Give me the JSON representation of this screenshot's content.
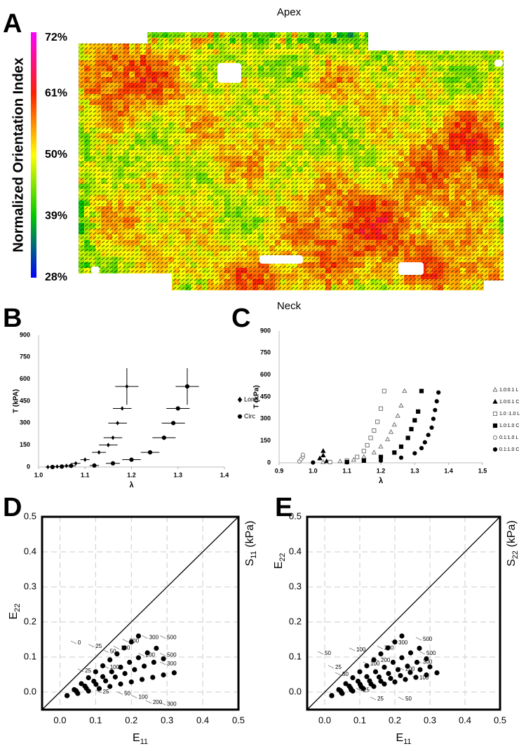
{
  "chart_data": [
    {
      "type": "heatmap",
      "panel": "A",
      "title": "Apex",
      "colorbar_label": "Normalized Orientation Index",
      "colormap": [
        "#0000ff",
        "#00c800",
        "#ffff00",
        "#ff2000",
        "#ff00ff"
      ],
      "clim": [
        28,
        72
      ],
      "cticks": [
        {
          "value": 72,
          "label": "72%"
        },
        {
          "value": 61,
          "label": "61%"
        },
        {
          "value": 50,
          "label": "50%"
        },
        {
          "value": 39,
          "label": "39%"
        },
        {
          "value": 28,
          "label": "28%"
        }
      ]
    },
    {
      "type": "scatter",
      "panel": "B",
      "ylabel": "T (kPA)",
      "xlabel": "λ",
      "xlim": [
        1.0,
        1.4
      ],
      "xticks": [
        {
          "value": 1,
          "label": "1.0"
        },
        {
          "value": 1.1,
          "label": "1.1"
        },
        {
          "value": 1.2,
          "label": "1.2"
        },
        {
          "value": 1.3,
          "label": "1.3"
        },
        {
          "value": 1.4,
          "label": "1.4"
        }
      ],
      "ylim": [
        0,
        900
      ],
      "yticks": [
        0,
        150,
        300,
        450,
        600,
        750,
        900
      ],
      "grid": false,
      "series": [
        {
          "name": "Long",
          "marker": "diamond",
          "filled": true,
          "color": "#000000",
          "x": [
            1.02,
            1.04,
            1.06,
            1.08,
            1.1,
            1.13,
            1.15,
            1.16,
            1.17,
            1.18,
            1.19
          ],
          "values": [
            0,
            3,
            8,
            25,
            50,
            100,
            150,
            200,
            300,
            400,
            550
          ],
          "x_err": [
            0.005,
            0.005,
            0.01,
            0.01,
            0.01,
            0.015,
            0.02,
            0.02,
            0.02,
            0.02,
            0.025
          ],
          "y_err": [
            0,
            0,
            0,
            0,
            0,
            0,
            0,
            0,
            0,
            0,
            125
          ]
        },
        {
          "name": "Circ",
          "marker": "circle",
          "filled": true,
          "color": "#000000",
          "x": [
            1.03,
            1.05,
            1.07,
            1.12,
            1.16,
            1.2,
            1.24,
            1.27,
            1.29,
            1.3,
            1.32
          ],
          "values": [
            0,
            3,
            8,
            10,
            25,
            50,
            100,
            200,
            300,
            400,
            550
          ],
          "x_err": [
            0.005,
            0.005,
            0.01,
            0.01,
            0.015,
            0.02,
            0.02,
            0.025,
            0.025,
            0.025,
            0.025
          ],
          "y_err": [
            0,
            0,
            0,
            0,
            0,
            0,
            0,
            0,
            0,
            0,
            125
          ]
        }
      ]
    },
    {
      "type": "scatter",
      "panel": "C",
      "title": "Neck",
      "ylabel": "T (kPa)",
      "xlabel": "λ",
      "xlim": [
        0.9,
        1.5
      ],
      "xticks": [
        0.9,
        {
          "value": 1,
          "label": "1.0"
        },
        1.1,
        1.2,
        1.3,
        1.4,
        1.5
      ],
      "ylim": [
        0,
        900
      ],
      "yticks": [
        0,
        150,
        300,
        450,
        600,
        750,
        900
      ],
      "grid": false,
      "series": [
        {
          "name": "1.0:0.1 L",
          "marker": "triangle",
          "filled": false,
          "color": "#666666",
          "x": [
            1.03,
            1.08,
            1.12,
            1.15,
            1.18,
            1.2,
            1.22,
            1.23,
            1.24,
            1.25,
            1.26,
            1.27
          ],
          "values": [
            5,
            10,
            20,
            40,
            70,
            110,
            160,
            210,
            260,
            320,
            390,
            490
          ]
        },
        {
          "name": "1.0:0.1 C",
          "marker": "triangle",
          "filled": true,
          "color": "#000000",
          "x": [
            1.02,
            1.03,
            1.03,
            1.04
          ],
          "values": [
            30,
            80,
            50,
            10
          ]
        },
        {
          "name": "1.0 :1.0 L",
          "marker": "square",
          "filled": false,
          "color": "#666666",
          "x": [
            1.05,
            1.1,
            1.13,
            1.15,
            1.16,
            1.17,
            1.18,
            1.19,
            1.2,
            1.21
          ],
          "values": [
            5,
            15,
            40,
            80,
            120,
            170,
            220,
            280,
            370,
            490
          ]
        },
        {
          "name": "1.0:1.0 C",
          "marker": "square",
          "filled": true,
          "color": "#000000",
          "x": [
            1.1,
            1.15,
            1.2,
            1.24,
            1.26,
            1.28,
            1.29,
            1.3,
            1.31,
            1.32
          ],
          "values": [
            5,
            15,
            40,
            70,
            110,
            170,
            230,
            290,
            350,
            490
          ]
        },
        {
          "name": "0.1:1.0 L",
          "marker": "circle",
          "filled": false,
          "color": "#666666",
          "x": [
            0.96,
            0.965,
            0.97,
            0.97
          ],
          "values": [
            10,
            25,
            40,
            55
          ]
        },
        {
          "name": "0.1:1.0 C",
          "marker": "circle",
          "filled": true,
          "color": "#000000",
          "x": [
            1.0,
            1.1,
            1.2,
            1.26,
            1.3,
            1.32,
            1.33,
            1.34,
            1.35,
            1.355,
            1.36,
            1.365,
            1.37
          ],
          "values": [
            2,
            5,
            15,
            35,
            65,
            100,
            140,
            190,
            240,
            300,
            360,
            420,
            480
          ]
        }
      ]
    },
    {
      "type": "strain",
      "panel": "D",
      "xlabel": "E",
      "xlabel_sub": "11",
      "ylabel": "E",
      "ylabel_sub": "22",
      "y2label": "S",
      "y2label_sub": "11",
      "y2label_unit": "(kPa)",
      "xlim": [
        -0.05,
        0.5
      ],
      "xticks": [
        {
          "value": 0,
          "label": "0.0"
        },
        0.1,
        0.2,
        0.3,
        0.4,
        0.5
      ],
      "ylim": [
        -0.05,
        0.5
      ],
      "yticks": [
        {
          "value": 0,
          "label": "0.0"
        },
        0.1,
        0.2,
        0.3,
        0.4,
        0.5
      ],
      "grid": true,
      "series": [
        {
          "color": "#000000",
          "x": [
            0.02,
            0.04,
            0.06,
            0.08,
            0.1,
            0.12,
            0.14,
            0.16,
            0.18,
            0.2,
            0.22
          ],
          "values": [
            -0.01,
            0.007,
            0.024,
            0.041,
            0.058,
            0.075,
            0.092,
            0.109,
            0.126,
            0.143,
            0.16
          ]
        },
        {
          "color": "#000000",
          "x": [
            0.02,
            0.045,
            0.07,
            0.095,
            0.12,
            0.145,
            0.17,
            0.195,
            0.22,
            0.245,
            0.27
          ],
          "values": [
            -0.01,
            0.004,
            0.017,
            0.031,
            0.044,
            0.058,
            0.071,
            0.085,
            0.098,
            0.112,
            0.125
          ]
        },
        {
          "color": "#000000",
          "x": [
            0.02,
            0.047,
            0.074,
            0.101,
            0.128,
            0.155,
            0.182,
            0.209,
            0.236,
            0.263,
            0.29
          ],
          "values": [
            -0.01,
            0.001,
            0.011,
            0.022,
            0.032,
            0.043,
            0.053,
            0.064,
            0.074,
            0.085,
            0.095
          ]
        },
        {
          "color": "#000000",
          "x": [
            0.02,
            0.05,
            0.08,
            0.11,
            0.14,
            0.17,
            0.2,
            0.23,
            0.26,
            0.29,
            0.32
          ],
          "values": [
            -0.01,
            -0.004,
            0.003,
            0.01,
            0.016,
            0.023,
            0.029,
            0.036,
            0.042,
            0.049,
            0.055
          ]
        }
      ],
      "contour_labels": [
        {
          "value": 0,
          "x": 0.05,
          "y": 0.14
        },
        {
          "value": 25,
          "x": 0.1,
          "y": 0.13
        },
        {
          "value": 50,
          "x": 0.14,
          "y": 0.115
        },
        {
          "value": 100,
          "x": 0.17,
          "y": 0.125
        },
        {
          "value": 200,
          "x": 0.195,
          "y": 0.145
        },
        {
          "value": 300,
          "x": 0.25,
          "y": 0.155
        },
        {
          "value": 500,
          "x": 0.3,
          "y": 0.155
        },
        {
          "value": 25,
          "x": 0.07,
          "y": 0.06
        },
        {
          "value": 100,
          "x": 0.14,
          "y": 0.07
        },
        {
          "value": 200,
          "x": 0.24,
          "y": 0.105
        },
        {
          "value": 500,
          "x": 0.3,
          "y": 0.105
        },
        {
          "value": 300,
          "x": 0.3,
          "y": 0.08
        },
        {
          "value": 25,
          "x": 0.12,
          "y": 0.0
        },
        {
          "value": 50,
          "x": 0.18,
          "y": -0.005
        },
        {
          "value": 100,
          "x": 0.22,
          "y": -0.015
        },
        {
          "value": 200,
          "x": 0.26,
          "y": -0.03
        },
        {
          "value": 300,
          "x": 0.3,
          "y": -0.035
        }
      ]
    },
    {
      "type": "strain",
      "panel": "E",
      "xlabel": "E",
      "xlabel_sub": "11",
      "ylabel": "E",
      "ylabel_sub": "22",
      "y2label": "S",
      "y2label_sub": "22",
      "y2label_unit": "(kPa)",
      "xlim": [
        -0.05,
        0.5
      ],
      "xticks": [
        {
          "value": 0,
          "label": "0.0"
        },
        0.1,
        0.2,
        0.3,
        0.4,
        0.5
      ],
      "ylim": [
        -0.05,
        0.5
      ],
      "yticks": [
        {
          "value": 0,
          "label": "0.0"
        },
        0.1,
        0.2,
        0.3,
        0.4,
        0.5
      ],
      "grid": true,
      "series": [
        {
          "color": "#000000",
          "x": [
            0.02,
            0.04,
            0.06,
            0.08,
            0.1,
            0.12,
            0.14,
            0.16,
            0.18,
            0.2,
            0.22
          ],
          "values": [
            -0.01,
            0.007,
            0.024,
            0.041,
            0.058,
            0.075,
            0.092,
            0.109,
            0.126,
            0.143,
            0.16
          ]
        },
        {
          "color": "#000000",
          "x": [
            0.02,
            0.045,
            0.07,
            0.095,
            0.12,
            0.145,
            0.17,
            0.195,
            0.22,
            0.245,
            0.27
          ],
          "values": [
            -0.01,
            0.004,
            0.017,
            0.031,
            0.044,
            0.058,
            0.071,
            0.085,
            0.098,
            0.112,
            0.125
          ]
        },
        {
          "color": "#000000",
          "x": [
            0.02,
            0.047,
            0.074,
            0.101,
            0.128,
            0.155,
            0.182,
            0.209,
            0.236,
            0.263,
            0.29
          ],
          "values": [
            -0.01,
            0.001,
            0.011,
            0.022,
            0.032,
            0.043,
            0.053,
            0.064,
            0.074,
            0.085,
            0.095
          ]
        },
        {
          "color": "#000000",
          "x": [
            0.02,
            0.048,
            0.076,
            0.104,
            0.132,
            0.16,
            0.188,
            0.216,
            0.244,
            0.272,
            0.3
          ],
          "values": [
            -0.01,
            -0.002,
            0.006,
            0.015,
            0.023,
            0.031,
            0.039,
            0.047,
            0.056,
            0.064,
            0.072
          ]
        },
        {
          "color": "#000000",
          "x": [
            0.02,
            0.05,
            0.08,
            0.11,
            0.14,
            0.17,
            0.2,
            0.23,
            0.26,
            0.29,
            0.32
          ],
          "values": [
            -0.01,
            -0.004,
            0.003,
            0.01,
            0.016,
            0.023,
            0.029,
            0.036,
            0.042,
            0.049,
            0.055
          ]
        }
      ],
      "contour_labels": [
        {
          "value": 50,
          "x": 0.0,
          "y": 0.11
        },
        {
          "value": 100,
          "x": 0.09,
          "y": 0.12
        },
        {
          "value": 200,
          "x": 0.17,
          "y": 0.125
        },
        {
          "value": 300,
          "x": 0.21,
          "y": 0.14
        },
        {
          "value": 500,
          "x": 0.28,
          "y": 0.15
        },
        {
          "value": 25,
          "x": 0.03,
          "y": 0.07
        },
        {
          "value": 50,
          "x": 0.05,
          "y": 0.05
        },
        {
          "value": 100,
          "x": 0.13,
          "y": 0.08
        },
        {
          "value": 200,
          "x": 0.16,
          "y": 0.09
        },
        {
          "value": 500,
          "x": 0.29,
          "y": 0.11
        },
        {
          "value": 300,
          "x": 0.28,
          "y": 0.085
        },
        {
          "value": 200,
          "x": 0.23,
          "y": 0.065
        },
        {
          "value": 100,
          "x": 0.27,
          "y": 0.04
        },
        {
          "value": 25,
          "x": 0.11,
          "y": 0.005
        },
        {
          "value": 50,
          "x": 0.23,
          "y": -0.02
        },
        {
          "value": 25,
          "x": 0.15,
          "y": -0.02
        }
      ]
    }
  ]
}
